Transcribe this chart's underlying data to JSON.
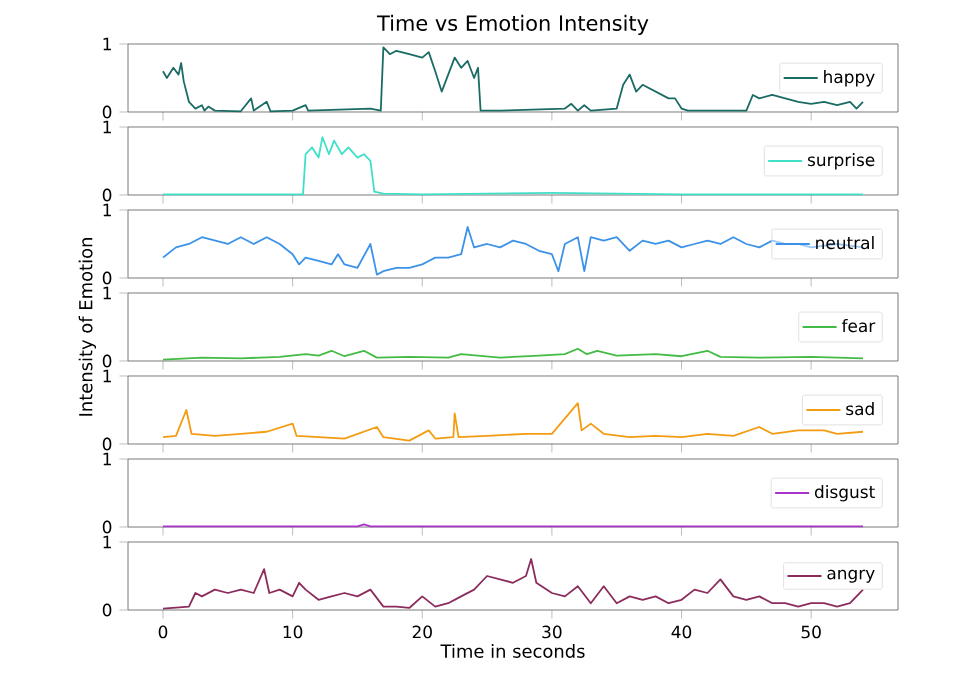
{
  "chart_data": [
    {
      "type": "line",
      "title": "Time vs Emotion Intensity",
      "xlim": [
        -2.7,
        56.7
      ],
      "ylim": [
        0,
        1
      ],
      "xticks": [
        0,
        10,
        20,
        30,
        40,
        50
      ],
      "yticks": [
        0,
        1
      ],
      "tick_labels": "y",
      "legend": "right",
      "x": [
        0,
        0.3,
        0.8,
        1.2,
        1.4,
        1.6,
        2,
        2.5,
        3,
        3.2,
        3.5,
        4,
        6,
        6.8,
        7,
        8,
        8.3,
        10,
        11,
        11.2,
        16,
        16.8,
        17,
        17.5,
        18,
        19,
        20,
        20.5,
        21,
        21.5,
        22,
        22.5,
        23,
        23.5,
        24,
        24.3,
        24.5,
        26,
        31,
        31.5,
        32,
        32.5,
        33,
        35,
        35.5,
        36,
        36.5,
        37,
        38,
        39,
        39.5,
        40,
        40.5,
        45,
        45.5,
        46,
        47,
        48,
        49,
        50,
        51,
        52,
        53,
        53.5,
        54
      ],
      "series": [
        {
          "name": "happy",
          "color": "#1a6b63",
          "values": [
            0.6,
            0.5,
            0.65,
            0.55,
            0.72,
            0.45,
            0.15,
            0.05,
            0.1,
            0.02,
            0.08,
            0.02,
            0.01,
            0.2,
            0.02,
            0.15,
            0.01,
            0.02,
            0.1,
            0.02,
            0.05,
            0.02,
            0.95,
            0.85,
            0.9,
            0.85,
            0.8,
            0.88,
            0.6,
            0.3,
            0.55,
            0.8,
            0.65,
            0.75,
            0.5,
            0.65,
            0.02,
            0.02,
            0.05,
            0.12,
            0.02,
            0.1,
            0.02,
            0.05,
            0.4,
            0.55,
            0.3,
            0.4,
            0.3,
            0.2,
            0.2,
            0.05,
            0.02,
            0.02,
            0.25,
            0.2,
            0.25,
            0.2,
            0.15,
            0.12,
            0.15,
            0.1,
            0.15,
            0.05,
            0.15
          ]
        }
      ]
    },
    {
      "type": "line",
      "xlim": [
        -2.7,
        56.7
      ],
      "ylim": [
        0,
        1
      ],
      "xticks": [
        0,
        10,
        20,
        30,
        40,
        50
      ],
      "yticks": [
        0,
        1
      ],
      "tick_labels": "y",
      "legend": "right",
      "x": [
        0,
        5,
        10.8,
        11,
        11.5,
        12,
        12.3,
        12.8,
        13.2,
        13.8,
        14.3,
        15,
        15.5,
        16,
        16.3,
        17,
        20,
        25,
        30,
        35,
        40,
        45,
        54
      ],
      "series": [
        {
          "name": "surprise",
          "color": "#40e0c8",
          "values": [
            0.01,
            0.01,
            0.01,
            0.6,
            0.7,
            0.55,
            0.85,
            0.6,
            0.8,
            0.6,
            0.7,
            0.55,
            0.6,
            0.5,
            0.05,
            0.02,
            0.01,
            0.02,
            0.03,
            0.02,
            0.01,
            0.01,
            0.01
          ]
        }
      ]
    },
    {
      "type": "line",
      "xlim": [
        -2.7,
        56.7
      ],
      "ylim": [
        0,
        1
      ],
      "xticks": [
        0,
        10,
        20,
        30,
        40,
        50
      ],
      "yticks": [
        0,
        1
      ],
      "tick_labels": "y",
      "legend": "right",
      "x": [
        0,
        1,
        2,
        3,
        4,
        5,
        6,
        7,
        8,
        9,
        10,
        10.5,
        11,
        12,
        13,
        13.5,
        14,
        15,
        16,
        16.5,
        17,
        18,
        19,
        20,
        20.5,
        21,
        22,
        23,
        23.5,
        24,
        25,
        26,
        27,
        28,
        29,
        30,
        30.5,
        31,
        32,
        32.5,
        33,
        34,
        35,
        36,
        37,
        38,
        39,
        40,
        41,
        42,
        43,
        44,
        45,
        46,
        47,
        48,
        49,
        50,
        52,
        54
      ],
      "series": [
        {
          "name": "neutral",
          "color": "#3b92e8",
          "values": [
            0.3,
            0.45,
            0.5,
            0.6,
            0.55,
            0.5,
            0.6,
            0.5,
            0.6,
            0.5,
            0.35,
            0.2,
            0.3,
            0.25,
            0.2,
            0.35,
            0.2,
            0.15,
            0.5,
            0.05,
            0.1,
            0.15,
            0.15,
            0.2,
            0.25,
            0.3,
            0.3,
            0.35,
            0.75,
            0.45,
            0.5,
            0.45,
            0.55,
            0.5,
            0.4,
            0.35,
            0.1,
            0.5,
            0.6,
            0.1,
            0.6,
            0.55,
            0.6,
            0.4,
            0.55,
            0.5,
            0.55,
            0.45,
            0.5,
            0.55,
            0.5,
            0.6,
            0.5,
            0.45,
            0.55,
            0.5,
            0.5,
            0.45,
            0.5,
            0.45
          ]
        }
      ]
    },
    {
      "type": "line",
      "ylabel": "Intensity of Emotion",
      "xlim": [
        -2.7,
        56.7
      ],
      "ylim": [
        0,
        1
      ],
      "xticks": [
        0,
        10,
        20,
        30,
        40,
        50
      ],
      "yticks": [
        0,
        1
      ],
      "tick_labels": "y",
      "legend": "right",
      "x": [
        0,
        3,
        6,
        9,
        11,
        12,
        13,
        14,
        15.5,
        16.5,
        19,
        22,
        23,
        26,
        29,
        31,
        32,
        32.7,
        33.5,
        35,
        38,
        40,
        42,
        43,
        46,
        50,
        54
      ],
      "series": [
        {
          "name": "fear",
          "color": "#44bb44",
          "values": [
            0.02,
            0.05,
            0.04,
            0.06,
            0.1,
            0.08,
            0.15,
            0.07,
            0.15,
            0.05,
            0.06,
            0.05,
            0.1,
            0.05,
            0.08,
            0.1,
            0.18,
            0.1,
            0.15,
            0.08,
            0.1,
            0.07,
            0.15,
            0.06,
            0.05,
            0.06,
            0.04
          ]
        }
      ]
    },
    {
      "type": "line",
      "xlim": [
        -2.7,
        56.7
      ],
      "ylim": [
        0,
        1
      ],
      "xticks": [
        0,
        10,
        20,
        30,
        40,
        50
      ],
      "yticks": [
        0,
        1
      ],
      "tick_labels": "y",
      "legend": "right",
      "x": [
        0,
        1,
        1.8,
        2.2,
        4,
        6,
        8,
        10,
        10.3,
        12,
        14,
        16.5,
        17,
        19,
        20.5,
        21,
        22.4,
        22.5,
        22.8,
        25,
        28,
        30,
        32,
        32.3,
        33,
        34,
        36,
        38,
        40,
        42,
        44,
        46,
        47,
        49,
        51,
        52,
        54
      ],
      "series": [
        {
          "name": "sad",
          "color": "#f39c12",
          "values": [
            0.1,
            0.12,
            0.5,
            0.15,
            0.12,
            0.15,
            0.18,
            0.3,
            0.12,
            0.1,
            0.08,
            0.25,
            0.1,
            0.05,
            0.2,
            0.08,
            0.1,
            0.45,
            0.1,
            0.12,
            0.15,
            0.15,
            0.6,
            0.2,
            0.3,
            0.15,
            0.1,
            0.12,
            0.1,
            0.15,
            0.12,
            0.25,
            0.15,
            0.2,
            0.2,
            0.15,
            0.18
          ]
        }
      ]
    },
    {
      "type": "line",
      "xlim": [
        -2.7,
        56.7
      ],
      "ylim": [
        0,
        1
      ],
      "xticks": [
        0,
        10,
        20,
        30,
        40,
        50
      ],
      "yticks": [
        0,
        1
      ],
      "tick_labels": "y",
      "legend": "right",
      "x": [
        0,
        10,
        15,
        15.5,
        16,
        25,
        35,
        45,
        54
      ],
      "series": [
        {
          "name": "disgust",
          "color": "#aa33cc",
          "values": [
            0.01,
            0.01,
            0.01,
            0.04,
            0.01,
            0.01,
            0.01,
            0.01,
            0.01
          ]
        }
      ]
    },
    {
      "type": "line",
      "xlabel": "Time in seconds",
      "xlim": [
        -2.7,
        56.7
      ],
      "ylim": [
        0,
        1
      ],
      "xticks": [
        0,
        10,
        20,
        30,
        40,
        50
      ],
      "yticks": [
        0,
        1
      ],
      "legend": "right",
      "x": [
        0,
        2,
        2.5,
        3,
        4,
        5,
        6,
        7,
        7.8,
        8.2,
        9,
        10,
        10.5,
        11,
        12,
        13,
        14,
        15,
        16,
        17,
        18,
        19,
        20,
        21,
        22,
        23,
        24,
        25,
        26,
        27,
        28,
        28.4,
        28.8,
        30,
        31,
        32,
        33,
        34,
        35,
        36,
        37,
        38,
        39,
        40,
        41,
        42,
        43,
        44,
        45,
        46,
        47,
        48,
        49,
        50,
        51,
        52,
        53,
        54
      ],
      "series": [
        {
          "name": "angry",
          "color": "#8b2c5c",
          "values": [
            0.02,
            0.05,
            0.25,
            0.2,
            0.3,
            0.25,
            0.3,
            0.25,
            0.6,
            0.25,
            0.3,
            0.2,
            0.4,
            0.3,
            0.15,
            0.2,
            0.25,
            0.2,
            0.3,
            0.05,
            0.05,
            0.03,
            0.2,
            0.05,
            0.1,
            0.2,
            0.3,
            0.5,
            0.45,
            0.4,
            0.5,
            0.75,
            0.4,
            0.25,
            0.2,
            0.35,
            0.1,
            0.35,
            0.1,
            0.2,
            0.15,
            0.2,
            0.1,
            0.15,
            0.3,
            0.25,
            0.45,
            0.2,
            0.15,
            0.2,
            0.1,
            0.1,
            0.05,
            0.1,
            0.1,
            0.05,
            0.1,
            0.3
          ]
        }
      ]
    }
  ]
}
